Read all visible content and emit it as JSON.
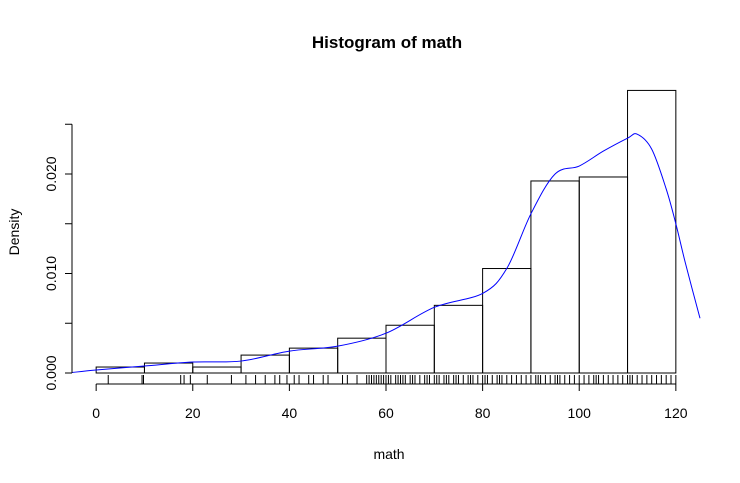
{
  "chart_data": {
    "type": "bar",
    "title": "Histogram of math",
    "xlabel": "math",
    "ylabel": "Density",
    "xlim": [
      -5,
      125
    ],
    "ylim": [
      0,
      0.025
    ],
    "x_ticks": [
      0,
      20,
      40,
      60,
      80,
      100,
      120
    ],
    "y_ticks": [
      0.0,
      0.005,
      0.01,
      0.015,
      0.02,
      0.025
    ],
    "y_tick_labels": [
      "0.000",
      "",
      "0.010",
      "",
      "0.020",
      ""
    ],
    "bins": [
      {
        "start": 0,
        "end": 10,
        "density": 0.0006
      },
      {
        "start": 10,
        "end": 20,
        "density": 0.001
      },
      {
        "start": 20,
        "end": 30,
        "density": 0.0006
      },
      {
        "start": 30,
        "end": 40,
        "density": 0.0018
      },
      {
        "start": 40,
        "end": 50,
        "density": 0.0025
      },
      {
        "start": 50,
        "end": 60,
        "density": 0.0035
      },
      {
        "start": 60,
        "end": 70,
        "density": 0.0048
      },
      {
        "start": 70,
        "end": 80,
        "density": 0.0068
      },
      {
        "start": 80,
        "end": 90,
        "density": 0.0105
      },
      {
        "start": 90,
        "end": 100,
        "density": 0.0193
      },
      {
        "start": 100,
        "end": 110,
        "density": 0.0197
      },
      {
        "start": 110,
        "end": 120,
        "density": 0.0284
      }
    ],
    "density_curve": {
      "color": "#0000ff",
      "x": [
        -5,
        0,
        10,
        20,
        30,
        40,
        50,
        60,
        70,
        80,
        85,
        90,
        95,
        100,
        105,
        110,
        112,
        115,
        118,
        120,
        122,
        125
      ],
      "y": [
        5e-05,
        0.0003,
        0.0007,
        0.0011,
        0.0012,
        0.0022,
        0.0027,
        0.004,
        0.0066,
        0.008,
        0.0105,
        0.016,
        0.02,
        0.0208,
        0.0223,
        0.0236,
        0.024,
        0.0225,
        0.0185,
        0.015,
        0.011,
        0.0055
      ]
    },
    "rug": [
      2.5,
      9.5,
      9.8,
      17.5,
      18.2,
      19.5,
      23,
      28,
      31,
      33,
      35,
      37,
      38,
      39.5,
      41,
      42,
      44,
      45,
      47,
      48,
      51,
      52,
      54,
      56,
      56.5,
      57,
      57.5,
      58,
      58.5,
      59,
      59.5,
      60,
      60.5,
      61,
      62,
      62.5,
      63,
      63.5,
      64,
      65,
      65.5,
      66,
      67,
      68,
      68.5,
      69,
      70,
      70.5,
      71,
      72,
      72.5,
      73,
      74,
      74.5,
      75,
      76,
      77,
      77.5,
      78,
      79,
      80,
      80.5,
      81,
      82,
      83,
      83.5,
      84,
      85,
      86,
      87,
      88,
      89,
      90,
      91,
      91.5,
      92,
      93,
      94,
      95,
      95.5,
      96,
      97,
      98,
      99,
      100,
      101,
      102,
      103,
      103.5,
      104,
      105,
      106,
      107,
      108,
      109,
      110,
      110.5,
      111,
      112,
      113,
      114,
      115,
      116,
      117,
      118,
      119,
      120
    ]
  }
}
